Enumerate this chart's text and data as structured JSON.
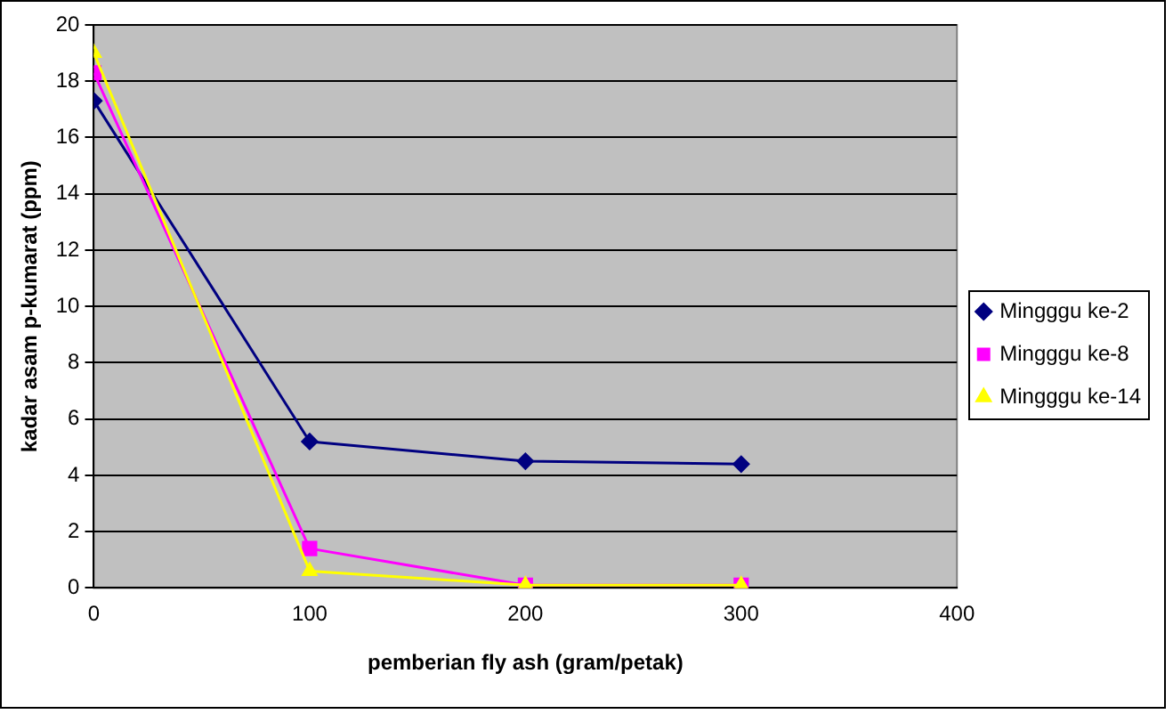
{
  "chart_data": {
    "type": "line",
    "xlabel": "pemberian fly ash (gram/petak)",
    "ylabel": "kadar asam p-kumarat (ppm)",
    "x": [
      0,
      100,
      200,
      300
    ],
    "series": [
      {
        "name": "Mingggu ke-2",
        "color": "#000080",
        "marker": "diamond",
        "values": [
          17.3,
          5.2,
          4.5,
          4.4
        ]
      },
      {
        "name": "Mingggu ke-8",
        "color": "#ff00ff",
        "marker": "square",
        "values": [
          18.3,
          1.4,
          0.1,
          0.1
        ]
      },
      {
        "name": "Mingggu ke-14",
        "color": "#ffff00",
        "marker": "triangle",
        "values": [
          19.0,
          0.6,
          0.1,
          0.1
        ]
      }
    ],
    "xlim": [
      0,
      400
    ],
    "xticks": [
      0,
      100,
      200,
      300,
      400
    ],
    "ylim": [
      0,
      20
    ],
    "yticks": [
      0,
      2,
      4,
      6,
      8,
      10,
      12,
      14,
      16,
      18,
      20
    ],
    "grid": "y",
    "legend": "right",
    "line_style": "solid"
  }
}
